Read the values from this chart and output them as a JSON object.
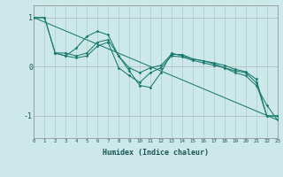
{
  "xlabel": "Humidex (Indice chaleur)",
  "background_color": "#cce8e8",
  "grid_color": "#aacccc",
  "line_color": "#1a7a6e",
  "xlim": [
    0,
    23
  ],
  "ylim": [
    -1.45,
    1.25
  ],
  "yticks": [
    -1,
    0,
    1
  ],
  "xticks": [
    0,
    1,
    2,
    3,
    4,
    5,
    6,
    7,
    8,
    9,
    10,
    11,
    12,
    13,
    14,
    15,
    16,
    17,
    18,
    19,
    20,
    21,
    22,
    23
  ],
  "series": [
    {
      "x": [
        0,
        1,
        2,
        3,
        4,
        5,
        6,
        7,
        8,
        9,
        10,
        11,
        12,
        13,
        14,
        15,
        16,
        17,
        18,
        19,
        20,
        21,
        22,
        23
      ],
      "y": [
        1.0,
        1.0,
        0.28,
        0.28,
        0.22,
        0.28,
        0.5,
        0.55,
        0.22,
        -0.02,
        -0.12,
        -0.02,
        0.03,
        0.25,
        0.25,
        0.16,
        0.12,
        0.08,
        0.03,
        -0.05,
        -0.1,
        -0.25,
        -1.0,
        -1.0
      ],
      "markers": true
    },
    {
      "x": [
        0,
        1,
        2,
        3,
        4,
        5,
        6,
        7,
        8,
        9,
        10,
        11,
        12,
        13,
        14,
        15,
        16,
        17,
        18,
        19,
        20,
        21,
        22,
        23
      ],
      "y": [
        1.0,
        1.0,
        0.28,
        0.22,
        0.18,
        0.22,
        0.42,
        0.5,
        -0.02,
        -0.18,
        -0.32,
        -0.12,
        -0.02,
        0.22,
        0.2,
        0.13,
        0.08,
        0.03,
        -0.02,
        -0.08,
        -0.12,
        -0.32,
        -1.0,
        -1.0
      ],
      "markers": true
    },
    {
      "x": [
        2,
        3,
        4,
        5,
        6,
        7,
        8,
        9,
        10,
        11,
        12,
        13,
        14,
        15,
        16,
        17,
        18,
        19,
        20,
        21,
        22,
        23
      ],
      "y": [
        0.28,
        0.22,
        0.38,
        0.62,
        0.72,
        0.65,
        0.22,
        -0.08,
        -0.38,
        -0.42,
        -0.12,
        0.28,
        0.22,
        0.16,
        0.12,
        0.06,
        -0.02,
        -0.12,
        -0.18,
        -0.38,
        -0.78,
        -1.08
      ],
      "markers": true
    },
    {
      "x": [
        0,
        23
      ],
      "y": [
        1.0,
        -1.08
      ],
      "markers": false
    }
  ]
}
